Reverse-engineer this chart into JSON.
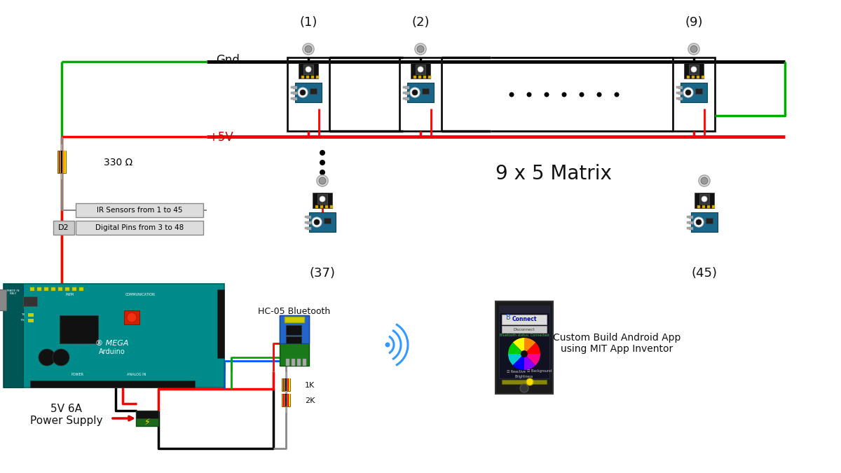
{
  "bg_color": "#ffffff",
  "labels": {
    "gnd": "Gnd",
    "plus5v": "+5V",
    "resistor330": "330 Ω",
    "ir_sensors": "IR Sensors from 1 to 45",
    "digital_pins": "Digital Pins from 3 to 48",
    "d2": "D2",
    "node1": "(1)",
    "node2": "(2)",
    "node9": "(9)",
    "node37": "(37)",
    "node45": "(45)",
    "matrix": "9 x 5 Matrix",
    "bluetooth": "HC-05 Bluetooth",
    "res1k": "1K",
    "res2k": "2K",
    "power": "5V 6A\nPower Supply",
    "android_app": "Custom Build Android App\nusing MIT App Inventor"
  },
  "colors": {
    "black_wire": "#000000",
    "red_wire": "#ff0000",
    "green_wire": "#00aa00",
    "gray_wire": "#888888",
    "blue_wire": "#0055ff",
    "arduino_teal": "#008B8B",
    "text_red": "#cc0000",
    "dots_color": "#000000",
    "arrow_red": "#dd0000"
  },
  "layout": {
    "figsize": [
      12.0,
      6.75
    ],
    "dpi": 100
  }
}
